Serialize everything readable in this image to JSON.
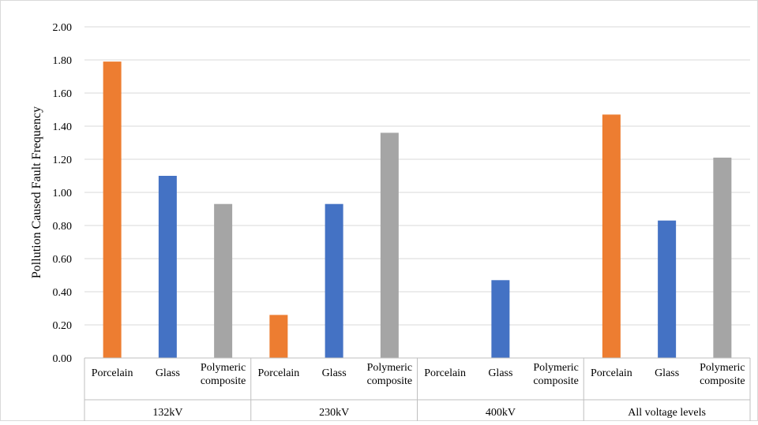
{
  "chart_data": {
    "type": "bar",
    "ylabel": "Pollution Caused Fault Frequency",
    "ylim": [
      0,
      2.0
    ],
    "yticks": [
      "0.00",
      "0.20",
      "0.40",
      "0.60",
      "0.80",
      "1.00",
      "1.20",
      "1.40",
      "1.60",
      "1.80",
      "2.00"
    ],
    "grid": true,
    "groups": [
      {
        "label": "132kV",
        "bars": [
          {
            "label": [
              "Porcelain"
            ],
            "value": 1.79,
            "color": "#ED7D31"
          },
          {
            "label": [
              "Glass"
            ],
            "value": 1.1,
            "color": "#4472C4"
          },
          {
            "label": [
              "Polymeric",
              "composite"
            ],
            "value": 0.93,
            "color": "#A5A5A5"
          }
        ]
      },
      {
        "label": "230kV",
        "bars": [
          {
            "label": [
              "Porcelain"
            ],
            "value": 0.26,
            "color": "#ED7D31"
          },
          {
            "label": [
              "Glass"
            ],
            "value": 0.93,
            "color": "#4472C4"
          },
          {
            "label": [
              "Polymeric",
              "composite"
            ],
            "value": 1.36,
            "color": "#A5A5A5"
          }
        ]
      },
      {
        "label": "400kV",
        "bars": [
          {
            "label": [
              "Porcelain"
            ],
            "value": 0,
            "color": "#ED7D31"
          },
          {
            "label": [
              "Glass"
            ],
            "value": 0.47,
            "color": "#4472C4"
          },
          {
            "label": [
              "Polymeric",
              "composite"
            ],
            "value": 0,
            "color": "#A5A5A5"
          }
        ]
      },
      {
        "label": "All voltage levels",
        "bars": [
          {
            "label": [
              "Porcelain"
            ],
            "value": 1.47,
            "color": "#ED7D31"
          },
          {
            "label": [
              "Glass"
            ],
            "value": 0.83,
            "color": "#4472C4"
          },
          {
            "label": [
              "Polymeric",
              "composite"
            ],
            "value": 1.21,
            "color": "#A5A5A5"
          }
        ]
      }
    ]
  }
}
